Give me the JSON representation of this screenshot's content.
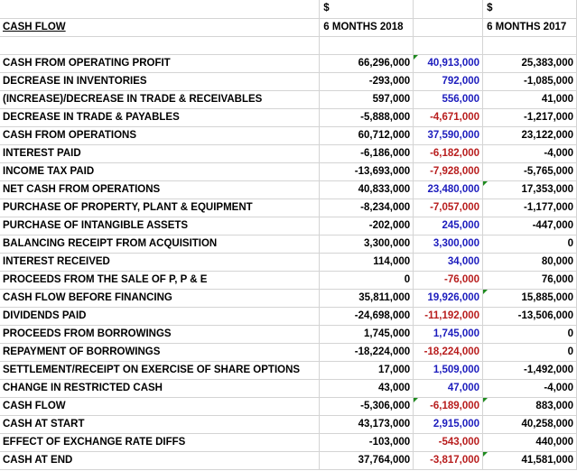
{
  "currency_row": {
    "col_b": "$",
    "col_d": "$"
  },
  "header": {
    "label": "CASH FLOW",
    "col_b": "6 MONTHS 2018",
    "col_d": "6 MONTHS 2017"
  },
  "rows": [
    {
      "label": "CASH FROM OPERATING PROFIT",
      "b": "66,296,000",
      "c": "40,913,000",
      "d": "25,383,000"
    },
    {
      "label": "DECREASE IN INVENTORIES",
      "b": "-293,000",
      "c": "792,000",
      "d": "-1,085,000"
    },
    {
      "label": "(INCREASE)/DECREASE IN TRADE & RECEIVABLES",
      "b": "597,000",
      "c": "556,000",
      "d": "41,000"
    },
    {
      "label": "DECREASE IN TRADE & PAYABLES",
      "b": "-5,888,000",
      "c": "-4,671,000",
      "d": "-1,217,000"
    },
    {
      "label": "CASH FROM OPERATIONS",
      "b": "60,712,000",
      "c": "37,590,000",
      "d": "23,122,000"
    },
    {
      "label": "INTEREST PAID",
      "b": "-6,186,000",
      "c": "-6,182,000",
      "d": "-4,000"
    },
    {
      "label": "INCOME TAX PAID",
      "b": "-13,693,000",
      "c": "-7,928,000",
      "d": "-5,765,000"
    },
    {
      "label": "NET CASH FROM OPERATIONS",
      "b": "40,833,000",
      "c": "23,480,000",
      "d": "17,353,000"
    },
    {
      "label": "PURCHASE OF PROPERTY, PLANT & EQUIPMENT",
      "b": "-8,234,000",
      "c": "-7,057,000",
      "d": "-1,177,000"
    },
    {
      "label": "PURCHASE OF INTANGIBLE ASSETS",
      "b": "-202,000",
      "c": "245,000",
      "d": "-447,000"
    },
    {
      "label": "BALANCING RECEIPT FROM ACQUISITION",
      "b": "3,300,000",
      "c": "3,300,000",
      "d": "0"
    },
    {
      "label": "INTEREST RECEIVED",
      "b": "114,000",
      "c": "34,000",
      "d": "80,000"
    },
    {
      "label": "PROCEEDS FROM THE SALE OF P, P & E",
      "b": "0",
      "c": "-76,000",
      "d": "76,000"
    },
    {
      "label": "CASH FLOW BEFORE FINANCING",
      "b": "35,811,000",
      "c": "19,926,000",
      "d": "15,885,000"
    },
    {
      "label": "DIVIDENDS PAID",
      "b": "-24,698,000",
      "c": "-11,192,000",
      "d": "-13,506,000"
    },
    {
      "label": "PROCEEDS FROM BORROWINGS",
      "b": "1,745,000",
      "c": "1,745,000",
      "d": "0"
    },
    {
      "label": "REPAYMENT OF BORROWINGS",
      "b": "-18,224,000",
      "c": "-18,224,000",
      "d": "0"
    },
    {
      "label": "SETTLEMENT/RECEIPT ON EXERCISE OF SHARE OPTIONS",
      "b": "17,000",
      "c": "1,509,000",
      "d": "-1,492,000"
    },
    {
      "label": "CHANGE IN RESTRICTED CASH",
      "b": "43,000",
      "c": "47,000",
      "d": "-4,000"
    },
    {
      "label": "CASH FLOW",
      "b": "-5,306,000",
      "c": "-6,189,000",
      "d": "883,000"
    },
    {
      "label": "CASH AT START",
      "b": "43,173,000",
      "c": "2,915,000",
      "d": "40,258,000"
    },
    {
      "label": "EFFECT OF EXCHANGE RATE DIFFS",
      "b": "-103,000",
      "c": "-543,000",
      "d": "440,000"
    },
    {
      "label": "CASH AT END",
      "b": "37,764,000",
      "c": "-3,817,000",
      "d": "41,581,000"
    }
  ],
  "colors": {
    "positive_c": "#1c1cbd",
    "negative_c": "#b81d1d",
    "grid": "#d4d4d4",
    "note_marker": "#1e8a1e"
  }
}
